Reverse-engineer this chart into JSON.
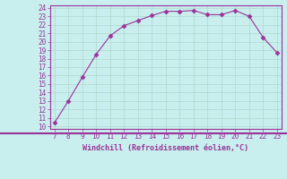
{
  "x": [
    7,
    8,
    9,
    10,
    11,
    12,
    13,
    14,
    15,
    16,
    17,
    18,
    19,
    20,
    21,
    22,
    23
  ],
  "y": [
    10.4,
    13.0,
    15.8,
    18.5,
    20.7,
    21.9,
    22.5,
    23.1,
    23.6,
    23.6,
    23.7,
    23.2,
    23.2,
    23.7,
    23.0,
    20.5,
    18.7
  ],
  "xlabel": "Windchill (Refroidissement éolien,°C)",
  "ylim": [
    10,
    24
  ],
  "xlim": [
    7,
    23
  ],
  "yticks": [
    10,
    11,
    12,
    13,
    14,
    15,
    16,
    17,
    18,
    19,
    20,
    21,
    22,
    23,
    24
  ],
  "xticks": [
    7,
    8,
    9,
    10,
    11,
    12,
    13,
    14,
    15,
    16,
    17,
    18,
    19,
    20,
    21,
    22,
    23
  ],
  "line_color": "#993399",
  "marker": "D",
  "marker_size": 2.5,
  "bg_color": "#c8eeed",
  "grid_color": "#b0d8d0",
  "axis_label_color": "#993399",
  "tick_label_color": "#993399",
  "separator_color": "#993399"
}
